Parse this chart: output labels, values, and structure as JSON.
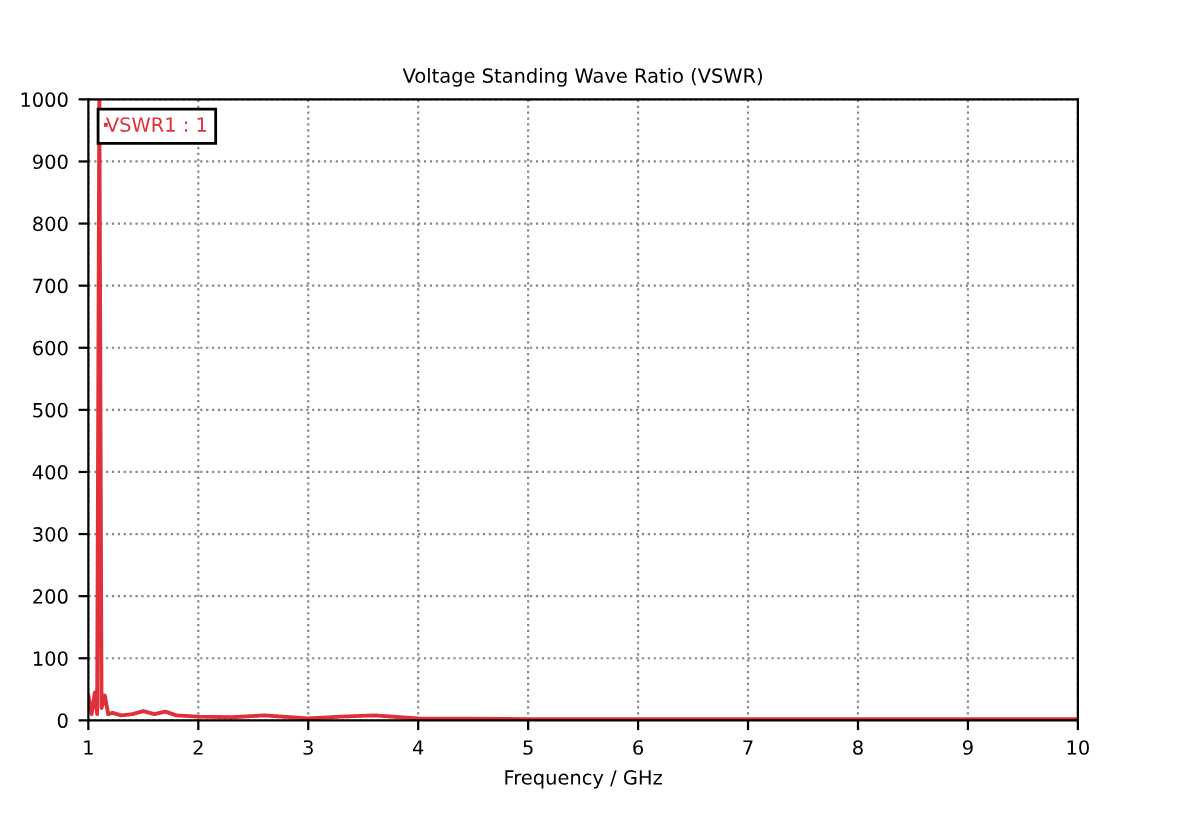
{
  "chart_data": {
    "type": "line",
    "title": "Voltage Standing Wave Ratio (VSWR)",
    "xlabel": "Frequency / GHz",
    "series": [
      {
        "name": "VSWR1 : 1",
        "color": "#e0303a",
        "x": [
          1.0,
          1.03,
          1.06,
          1.08,
          1.1,
          1.12,
          1.15,
          1.18,
          1.22,
          1.3,
          1.4,
          1.5,
          1.6,
          1.7,
          1.8,
          2.0,
          2.3,
          2.6,
          3.0,
          3.3,
          3.6,
          4.0,
          5.0,
          6.0,
          7.0,
          8.0,
          9.0,
          10.0
        ],
        "values": [
          40,
          10,
          45,
          10,
          1000,
          20,
          40,
          10,
          12,
          8,
          10,
          15,
          10,
          14,
          8,
          6,
          5,
          8,
          3,
          6,
          8,
          3,
          2,
          2,
          2,
          2,
          2,
          2
        ]
      }
    ],
    "xlim": [
      1,
      10
    ],
    "ylim": [
      0,
      1000
    ],
    "xticks": [
      1,
      2,
      3,
      4,
      5,
      6,
      7,
      8,
      9,
      10
    ],
    "yticks": [
      0,
      100,
      200,
      300,
      400,
      500,
      600,
      700,
      800,
      900,
      1000
    ],
    "grid": true,
    "legend": "top left",
    "marker": "none",
    "line_style": "solid"
  }
}
